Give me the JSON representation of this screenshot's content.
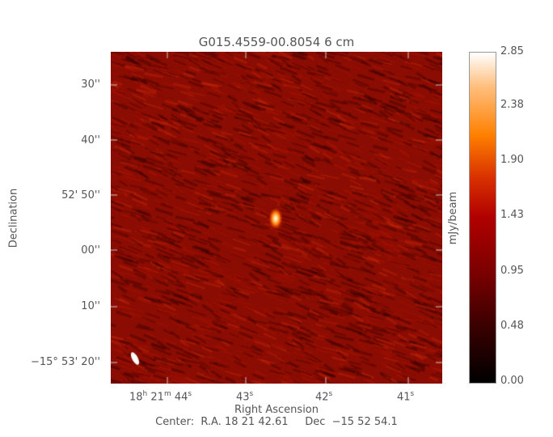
{
  "chart_data": {
    "type": "heatmap",
    "title": "G015.4559-00.8054 6 cm",
    "xlabel": "Right Ascension",
    "ylabel": "Declination",
    "x_ticks": [
      {
        "h": "18",
        "m": "21",
        "s": "44"
      },
      {
        "s": "43"
      },
      {
        "s": "42"
      },
      {
        "s": "41"
      }
    ],
    "y_ticks": [
      "30''",
      "40''",
      "52' 50''",
      "00''",
      "10''",
      "−15° 53' 20''"
    ],
    "colorbar": {
      "label": "mJy/beam",
      "ticks": [
        "0.00",
        "0.48",
        "0.95",
        "1.43",
        "1.90",
        "2.38",
        "2.85"
      ],
      "range": [
        0.0,
        2.85
      ],
      "colormap": "red-orange-white heat"
    },
    "source": {
      "description_value_mJy_peak": 2.85
    },
    "beam_shown": true,
    "center_text": "Center:  R.A. 18 21 42.61     Dec  −15 52 54.1",
    "colors": {
      "background_map": "#8a0a00",
      "source": "#ffffff"
    }
  }
}
